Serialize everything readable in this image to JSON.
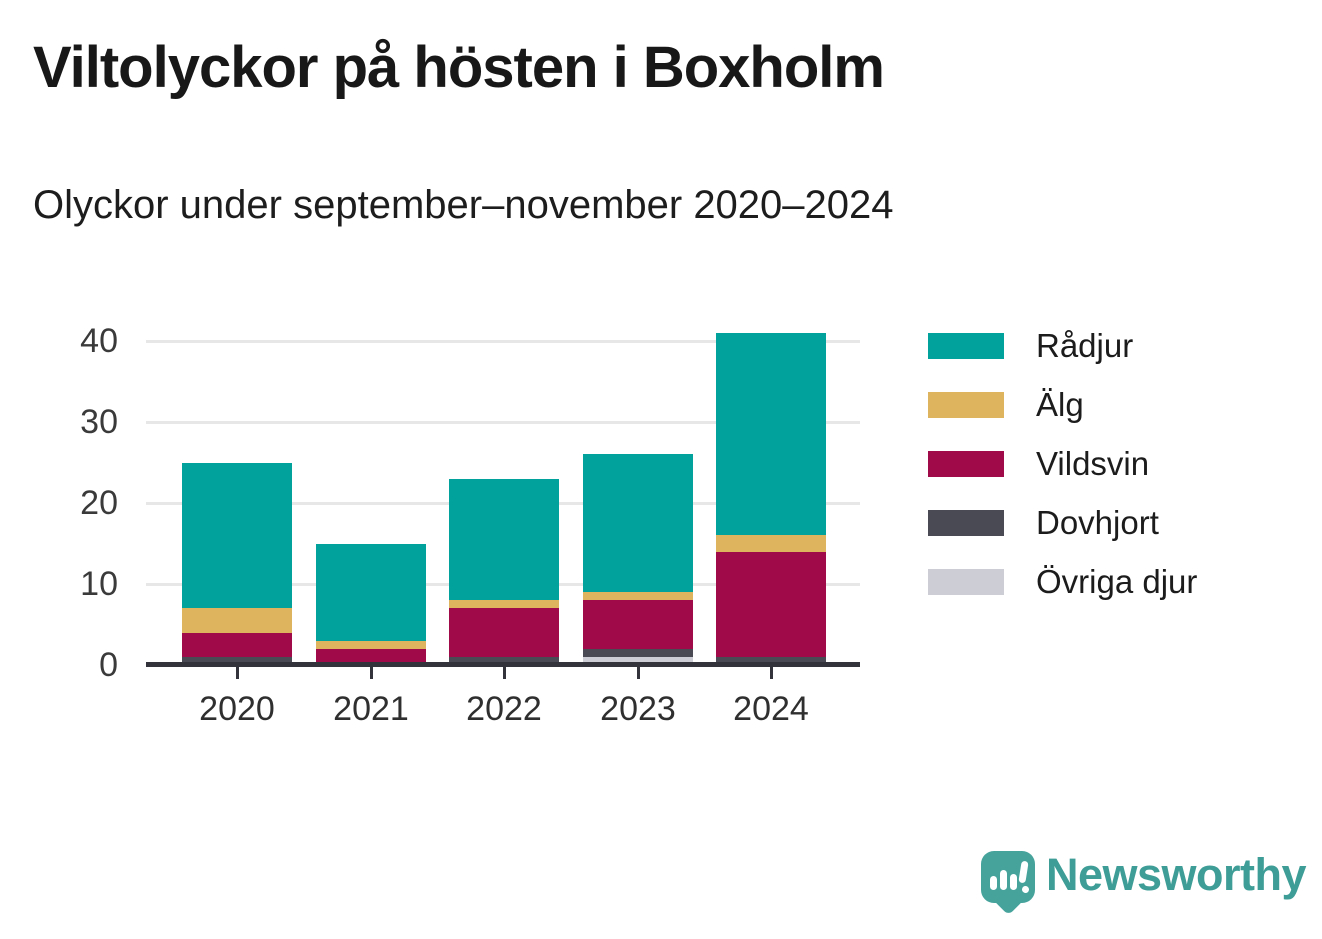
{
  "header": {
    "title": "Viltolyckor på hösten i Boxholm",
    "subtitle": "Olyckor under september–november 2020–2024"
  },
  "chart_data": {
    "type": "bar",
    "stacked": true,
    "title": "Viltolyckor på hösten i Boxholm",
    "subtitle": "Olyckor under september–november 2020–2024",
    "categories": [
      "2020",
      "2021",
      "2022",
      "2023",
      "2024"
    ],
    "series": [
      {
        "name": "Rådjur",
        "color": "#00a29b",
        "values": [
          18,
          12,
          15,
          17,
          25
        ]
      },
      {
        "name": "Älg",
        "color": "#deb45f",
        "values": [
          3,
          1,
          1,
          1,
          2
        ]
      },
      {
        "name": "Vildsvin",
        "color": "#a10a48",
        "values": [
          3,
          2,
          6,
          6,
          13
        ]
      },
      {
        "name": "Dovhjort",
        "color": "#4a4a54",
        "values": [
          1,
          0,
          1,
          1,
          1
        ]
      },
      {
        "name": "Övriga djur",
        "color": "#cdcdd5",
        "values": [
          0,
          0,
          0,
          1,
          0
        ]
      }
    ],
    "totals": [
      25,
      15,
      23,
      26,
      41
    ],
    "y_ticks": [
      0,
      10,
      20,
      30,
      40
    ],
    "ylim": [
      0,
      41
    ],
    "xlabel": "",
    "ylabel": "",
    "grid": true,
    "legend_position": "right",
    "stack_order_bottom_to_top": [
      "Övriga djur",
      "Dovhjort",
      "Vildsvin",
      "Älg",
      "Rådjur"
    ]
  },
  "colors": {
    "axis": "#33333b",
    "gridline": "#e7e7e7",
    "tick_label": "#3a3a3a",
    "title_text": "#181818",
    "brand_teal": "#3e9d96"
  },
  "footer": {
    "brand": "Newsworthy",
    "logo_icon": "newsworthy-speech-bubble-chart-icon"
  }
}
